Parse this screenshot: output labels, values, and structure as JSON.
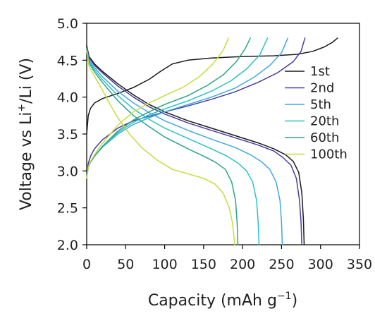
{
  "chart_data": {
    "type": "line",
    "xlabel_main": "Capacity (mAh g",
    "xlabel_sup": "−1",
    "xlabel_tail": ")",
    "ylabel_pre": "Voltage vs Li",
    "ylabel_sup": "+",
    "ylabel_post": "/Li (V)",
    "xlim": [
      0,
      350
    ],
    "ylim": [
      2.0,
      5.0
    ],
    "xticks": [
      "0",
      "50",
      "100",
      "150",
      "200",
      "250",
      "300",
      "350"
    ],
    "yticks": [
      "2.0",
      "2.5",
      "3.0",
      "3.5",
      "4.0",
      "4.5",
      "5.0"
    ],
    "legend_position": "right, upper-middle",
    "series": [
      {
        "name": "1st",
        "color": "#1a1a1a",
        "charge": [
          [
            0,
            3.5
          ],
          [
            2,
            3.75
          ],
          [
            5,
            3.85
          ],
          [
            10,
            3.92
          ],
          [
            20,
            3.98
          ],
          [
            40,
            4.05
          ],
          [
            60,
            4.13
          ],
          [
            80,
            4.24
          ],
          [
            95,
            4.35
          ],
          [
            110,
            4.45
          ],
          [
            130,
            4.5
          ],
          [
            160,
            4.53
          ],
          [
            200,
            4.55
          ],
          [
            240,
            4.56
          ],
          [
            270,
            4.58
          ],
          [
            290,
            4.62
          ],
          [
            305,
            4.68
          ],
          [
            315,
            4.74
          ],
          [
            322,
            4.8
          ]
        ],
        "discharge": [
          [
            0,
            4.7
          ],
          [
            3,
            4.55
          ],
          [
            10,
            4.45
          ],
          [
            20,
            4.35
          ],
          [
            40,
            4.18
          ],
          [
            60,
            4.03
          ],
          [
            80,
            3.9
          ],
          [
            100,
            3.8
          ],
          [
            130,
            3.68
          ],
          [
            160,
            3.58
          ],
          [
            190,
            3.48
          ],
          [
            220,
            3.38
          ],
          [
            240,
            3.3
          ],
          [
            255,
            3.22
          ],
          [
            265,
            3.13
          ],
          [
            272,
            2.98
          ],
          [
            276,
            2.7
          ],
          [
            278,
            2.35
          ],
          [
            279,
            2.0
          ]
        ]
      },
      {
        "name": "2nd",
        "color": "#4b3c9c",
        "charge": [
          [
            0,
            2.9
          ],
          [
            2,
            3.1
          ],
          [
            5,
            3.2
          ],
          [
            10,
            3.3
          ],
          [
            20,
            3.42
          ],
          [
            40,
            3.58
          ],
          [
            60,
            3.68
          ],
          [
            80,
            3.74
          ],
          [
            100,
            3.8
          ],
          [
            130,
            3.88
          ],
          [
            160,
            3.97
          ],
          [
            190,
            4.07
          ],
          [
            220,
            4.2
          ],
          [
            245,
            4.33
          ],
          [
            265,
            4.48
          ],
          [
            275,
            4.62
          ],
          [
            280,
            4.8
          ]
        ],
        "discharge": [
          [
            0,
            4.67
          ],
          [
            3,
            4.53
          ],
          [
            10,
            4.43
          ],
          [
            20,
            4.33
          ],
          [
            40,
            4.15
          ],
          [
            60,
            4.0
          ],
          [
            80,
            3.87
          ],
          [
            100,
            3.77
          ],
          [
            130,
            3.65
          ],
          [
            160,
            3.55
          ],
          [
            190,
            3.45
          ],
          [
            220,
            3.35
          ],
          [
            240,
            3.27
          ],
          [
            252,
            3.18
          ],
          [
            262,
            3.08
          ],
          [
            269,
            2.9
          ],
          [
            273,
            2.6
          ],
          [
            275,
            2.3
          ],
          [
            276,
            2.0
          ]
        ]
      },
      {
        "name": "5th",
        "color": "#3fa9e0",
        "charge": [
          [
            0,
            2.9
          ],
          [
            2,
            3.05
          ],
          [
            5,
            3.12
          ],
          [
            10,
            3.2
          ],
          [
            20,
            3.32
          ],
          [
            40,
            3.5
          ],
          [
            60,
            3.63
          ],
          [
            80,
            3.72
          ],
          [
            100,
            3.8
          ],
          [
            130,
            3.9
          ],
          [
            160,
            4.0
          ],
          [
            190,
            4.12
          ],
          [
            215,
            4.27
          ],
          [
            235,
            4.43
          ],
          [
            250,
            4.6
          ],
          [
            258,
            4.8
          ]
        ],
        "discharge": [
          [
            0,
            4.66
          ],
          [
            3,
            4.5
          ],
          [
            10,
            4.4
          ],
          [
            20,
            4.28
          ],
          [
            40,
            4.08
          ],
          [
            60,
            3.92
          ],
          [
            80,
            3.79
          ],
          [
            100,
            3.68
          ],
          [
            130,
            3.55
          ],
          [
            160,
            3.43
          ],
          [
            190,
            3.32
          ],
          [
            210,
            3.22
          ],
          [
            225,
            3.12
          ],
          [
            235,
            3.02
          ],
          [
            243,
            2.85
          ],
          [
            248,
            2.6
          ],
          [
            250,
            2.3
          ],
          [
            251,
            2.0
          ]
        ]
      },
      {
        "name": "20th",
        "color": "#2cc2c2",
        "charge": [
          [
            0,
            2.9
          ],
          [
            2,
            3.05
          ],
          [
            5,
            3.12
          ],
          [
            10,
            3.2
          ],
          [
            20,
            3.32
          ],
          [
            40,
            3.52
          ],
          [
            60,
            3.66
          ],
          [
            80,
            3.76
          ],
          [
            100,
            3.84
          ],
          [
            130,
            3.95
          ],
          [
            160,
            4.08
          ],
          [
            185,
            4.22
          ],
          [
            205,
            4.38
          ],
          [
            222,
            4.57
          ],
          [
            232,
            4.8
          ]
        ],
        "discharge": [
          [
            0,
            4.65
          ],
          [
            3,
            4.48
          ],
          [
            10,
            4.37
          ],
          [
            20,
            4.24
          ],
          [
            40,
            4.02
          ],
          [
            60,
            3.84
          ],
          [
            80,
            3.7
          ],
          [
            100,
            3.58
          ],
          [
            130,
            3.44
          ],
          [
            160,
            3.3
          ],
          [
            180,
            3.2
          ],
          [
            195,
            3.1
          ],
          [
            205,
            3.0
          ],
          [
            213,
            2.85
          ],
          [
            218,
            2.6
          ],
          [
            220,
            2.3
          ],
          [
            221,
            2.0
          ]
        ]
      },
      {
        "name": "60th",
        "color": "#2aa587",
        "charge": [
          [
            0,
            2.9
          ],
          [
            2,
            3.05
          ],
          [
            5,
            3.12
          ],
          [
            10,
            3.2
          ],
          [
            20,
            3.33
          ],
          [
            40,
            3.54
          ],
          [
            60,
            3.69
          ],
          [
            80,
            3.8
          ],
          [
            100,
            3.9
          ],
          [
            130,
            4.02
          ],
          [
            155,
            4.16
          ],
          [
            175,
            4.3
          ],
          [
            192,
            4.48
          ],
          [
            203,
            4.65
          ],
          [
            210,
            4.8
          ]
        ],
        "discharge": [
          [
            0,
            4.65
          ],
          [
            3,
            4.46
          ],
          [
            10,
            4.34
          ],
          [
            20,
            4.2
          ],
          [
            40,
            3.95
          ],
          [
            60,
            3.75
          ],
          [
            80,
            3.6
          ],
          [
            100,
            3.46
          ],
          [
            130,
            3.3
          ],
          [
            150,
            3.2
          ],
          [
            165,
            3.12
          ],
          [
            178,
            3.02
          ],
          [
            186,
            2.85
          ],
          [
            191,
            2.6
          ],
          [
            193,
            2.3
          ],
          [
            194,
            2.0
          ]
        ]
      },
      {
        "name": "100th",
        "color": "#c6dc3e",
        "charge": [
          [
            0,
            2.9
          ],
          [
            2,
            3.05
          ],
          [
            5,
            3.13
          ],
          [
            10,
            3.22
          ],
          [
            20,
            3.37
          ],
          [
            40,
            3.62
          ],
          [
            60,
            3.8
          ],
          [
            80,
            3.92
          ],
          [
            100,
            4.02
          ],
          [
            125,
            4.14
          ],
          [
            145,
            4.28
          ],
          [
            162,
            4.45
          ],
          [
            175,
            4.63
          ],
          [
            182,
            4.8
          ]
        ],
        "discharge": [
          [
            0,
            4.63
          ],
          [
            3,
            4.42
          ],
          [
            10,
            4.28
          ],
          [
            20,
            4.1
          ],
          [
            30,
            3.9
          ],
          [
            40,
            3.72
          ],
          [
            55,
            3.5
          ],
          [
            70,
            3.32
          ],
          [
            90,
            3.15
          ],
          [
            110,
            3.02
          ],
          [
            130,
            2.96
          ],
          [
            150,
            2.9
          ],
          [
            165,
            2.82
          ],
          [
            175,
            2.7
          ],
          [
            183,
            2.5
          ],
          [
            187,
            2.3
          ],
          [
            189,
            2.1
          ],
          [
            190,
            2.0
          ]
        ]
      }
    ]
  }
}
